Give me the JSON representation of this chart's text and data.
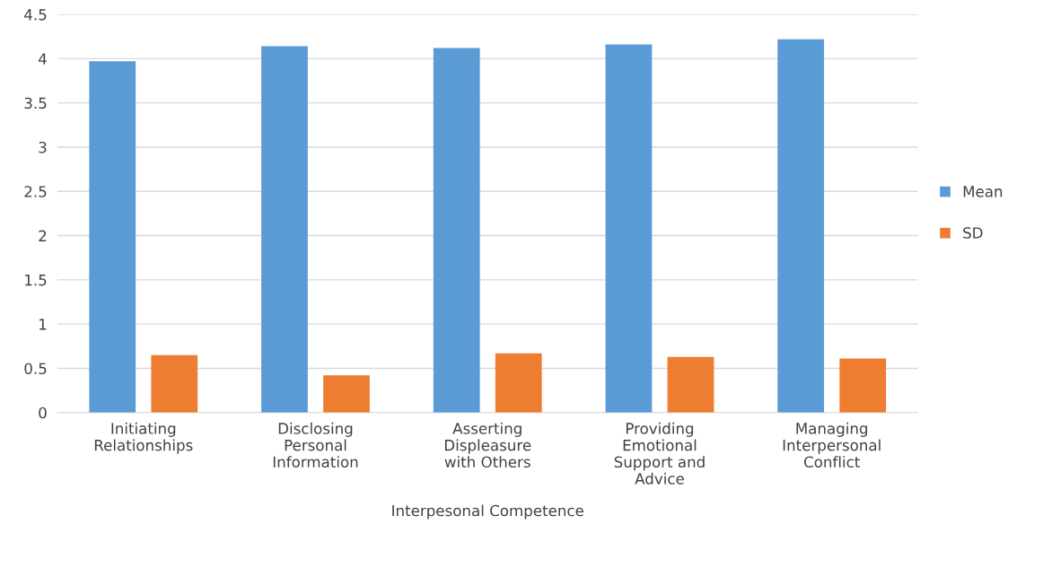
{
  "chart_data": {
    "type": "bar",
    "xlabel": "Interpesonal Competence",
    "categories": [
      "Initiating\nRelationships",
      "Disclosing\nPersonal\nInformation",
      "Asserting\nDispleasure\nwith Others",
      "Providing\nEmotional\nSupport and\nAdvice",
      "Managing\nInterpersonal\nConflict"
    ],
    "series": [
      {
        "name": "Mean",
        "color": "#5b9bd5",
        "values": [
          3.97,
          4.14,
          4.12,
          4.16,
          4.22
        ]
      },
      {
        "name": "SD",
        "color": "#ed7d31",
        "values": [
          0.65,
          0.42,
          0.67,
          0.63,
          0.61
        ]
      }
    ],
    "ylim": [
      0,
      4.5
    ],
    "yticks": [
      0,
      0.5,
      1,
      1.5,
      2,
      2.5,
      3,
      3.5,
      4,
      4.5
    ],
    "grid": "y",
    "legend": "right"
  }
}
